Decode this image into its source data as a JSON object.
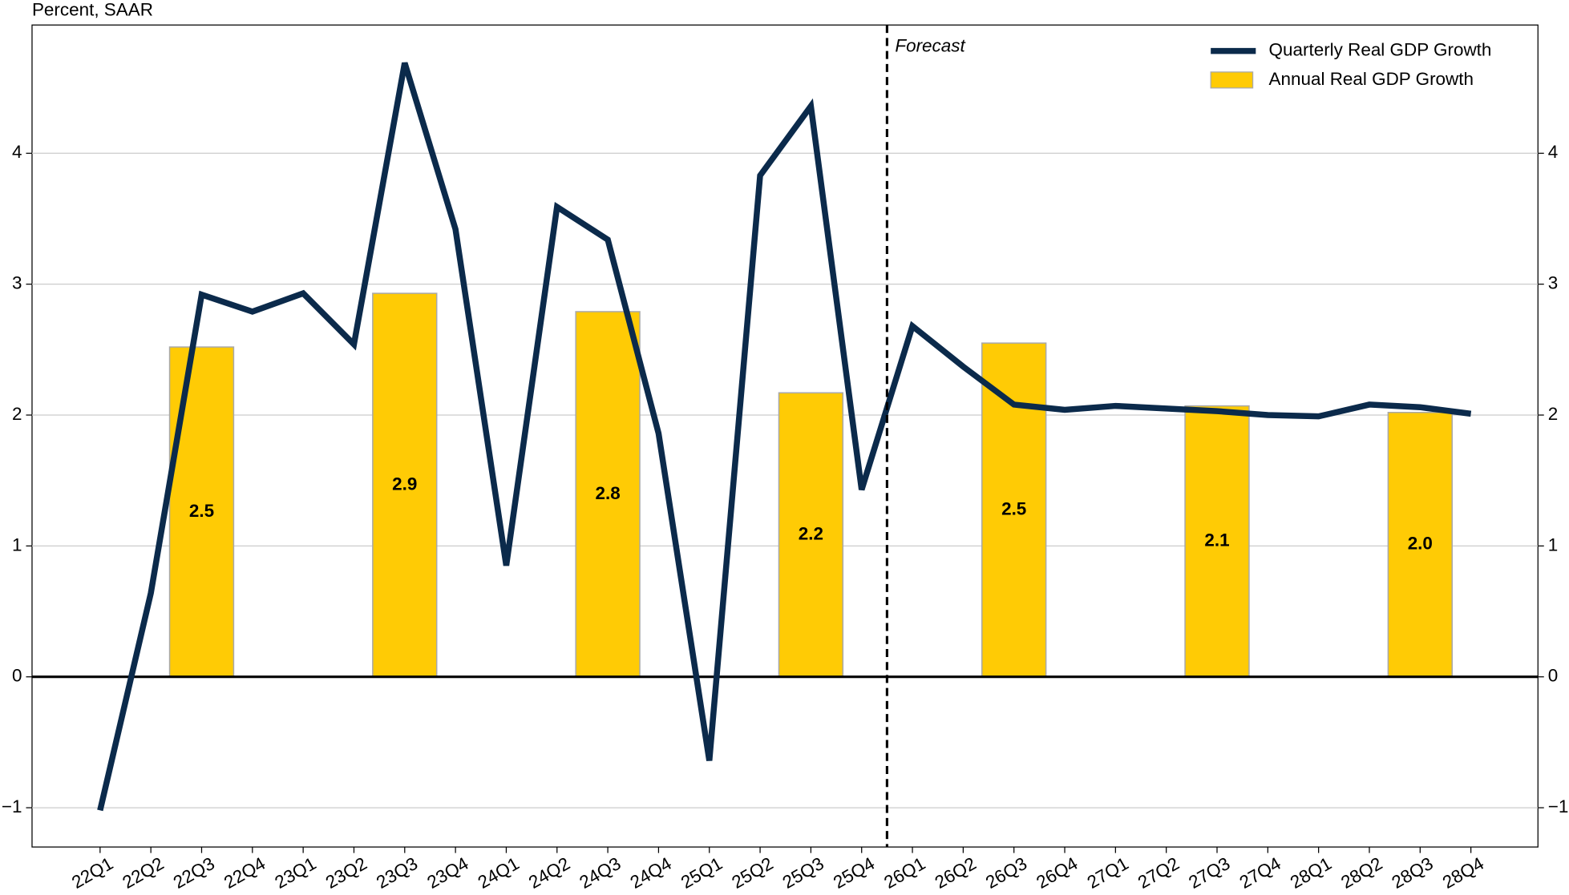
{
  "chart_data": {
    "type": "combo",
    "y_label": "Percent, SAAR",
    "categories": [
      "22Q1",
      "22Q2",
      "22Q3",
      "22Q4",
      "23Q1",
      "23Q2",
      "23Q3",
      "23Q4",
      "24Q1",
      "24Q2",
      "24Q3",
      "24Q4",
      "25Q1",
      "25Q2",
      "25Q3",
      "25Q4",
      "26Q1",
      "26Q2",
      "26Q3",
      "26Q4",
      "27Q1",
      "27Q2",
      "27Q3",
      "27Q4",
      "28Q1",
      "28Q2",
      "28Q3",
      "28Q4"
    ],
    "series": [
      {
        "name": "Quarterly Real GDP Growth",
        "type": "line",
        "color": "#0b2a4b",
        "values": [
          -1.02,
          0.64,
          2.92,
          2.79,
          2.93,
          2.54,
          4.69,
          3.42,
          0.85,
          3.59,
          3.34,
          1.86,
          -0.64,
          3.83,
          4.36,
          1.43,
          2.68,
          2.37,
          2.08,
          2.04,
          2.07,
          2.05,
          2.03,
          2.0,
          1.99,
          2.08,
          2.06,
          2.01
        ]
      },
      {
        "name": "Annual Real GDP Growth",
        "type": "bar",
        "color": "#ffcb05",
        "values": [
          null,
          null,
          2.52,
          null,
          null,
          null,
          2.93,
          null,
          null,
          null,
          2.79,
          null,
          null,
          null,
          2.17,
          null,
          null,
          null,
          2.55,
          null,
          null,
          null,
          2.07,
          null,
          null,
          null,
          2.02,
          null
        ],
        "value_labels": [
          null,
          null,
          "2.5",
          null,
          null,
          null,
          "2.9",
          null,
          null,
          null,
          "2.8",
          null,
          null,
          null,
          "2.2",
          null,
          null,
          null,
          "2.5",
          null,
          null,
          null,
          "2.1",
          null,
          null,
          null,
          "2.0",
          null
        ]
      }
    ],
    "annotation": "Forecast",
    "ylim": [
      -1.3,
      4.98
    ],
    "yticks": [
      {
        "value": -1,
        "label": "−1"
      },
      0,
      1,
      2,
      3,
      4
    ],
    "grid": true,
    "legend": "upper right"
  }
}
